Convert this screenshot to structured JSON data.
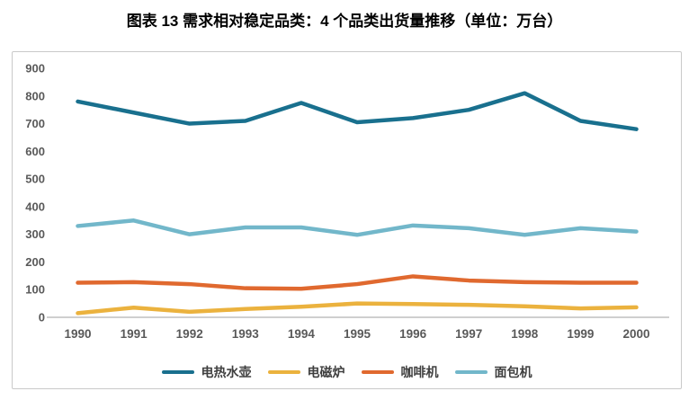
{
  "title": "图表 13 需求相对稳定品类：4 个品类出货量推移（单位：万台）",
  "chart_data": {
    "type": "line",
    "title": "图表 13 需求相对稳定品类：4 个品类出货量推移（单位：万台）",
    "unit": "万台",
    "x": [
      "1990",
      "1991",
      "1992",
      "1993",
      "1994",
      "1995",
      "1996",
      "1997",
      "1998",
      "1999",
      "2000"
    ],
    "series": [
      {
        "name": "电热水壶",
        "color": "#19708e",
        "values": [
          780,
          740,
          700,
          710,
          775,
          705,
          720,
          750,
          810,
          710,
          680
        ]
      },
      {
        "name": "电磁炉",
        "color": "#ebb23e",
        "values": [
          15,
          35,
          20,
          30,
          38,
          50,
          48,
          45,
          40,
          32,
          36
        ]
      },
      {
        "name": "咖啡机",
        "color": "#e0692f",
        "values": [
          125,
          127,
          120,
          105,
          103,
          120,
          148,
          133,
          127,
          125,
          125
        ]
      },
      {
        "name": "面包机",
        "color": "#72b7ca",
        "values": [
          330,
          350,
          300,
          325,
          325,
          298,
          332,
          322,
          298,
          322,
          310
        ]
      }
    ],
    "ylim": [
      0,
      900
    ],
    "yticks": [
      0,
      100,
      200,
      300,
      400,
      500,
      600,
      700,
      800,
      900
    ],
    "grid": false,
    "legend_position": "bottom",
    "axis_line_color": "#cfcfcf",
    "tick_label_color": "#595959"
  }
}
